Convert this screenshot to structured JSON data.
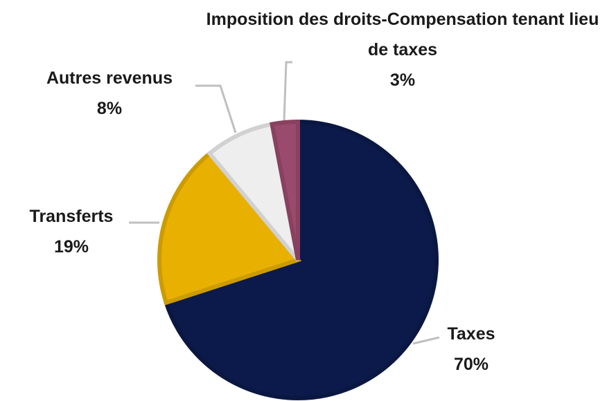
{
  "chart_data": {
    "type": "pie",
    "categories": [
      "Taxes",
      "Transferts",
      "Autres revenus",
      "Imposition des droits-Compensation tenant lieu de taxes"
    ],
    "values": [
      70,
      19,
      8,
      3
    ],
    "value_labels": [
      "70%",
      "19%",
      "8%",
      "3%"
    ],
    "colors": [
      "#0b1a4a",
      "#e8b000",
      "#eeeeee",
      "#9a4a6c"
    ]
  }
}
